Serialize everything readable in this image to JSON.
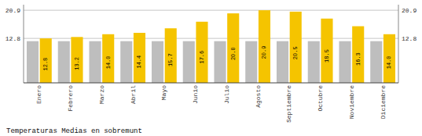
{
  "chart_data": {
    "type": "bar",
    "title": "Temperaturas Medias en sobremunt",
    "categories": [
      "Enero",
      "Febrero",
      "Marzo",
      "Abril",
      "Mayo",
      "Junio",
      "Julio",
      "Agosto",
      "Septiembre",
      "Octubre",
      "Noviembre",
      "Diciembre"
    ],
    "series": [
      {
        "color": "#BEBEBE",
        "values": [
          12.0,
          12.0,
          12.0,
          12.0,
          12.0,
          12.0,
          12.0,
          12.0,
          12.0,
          12.0,
          12.0,
          12.0
        ]
      },
      {
        "color": "#F5C400",
        "values": [
          12.8,
          13.2,
          14.0,
          14.4,
          15.7,
          17.6,
          20.0,
          20.9,
          20.5,
          18.5,
          16.3,
          14.0
        ],
        "value_labels": [
          "12.8",
          "13.2",
          "14.0",
          "14.4",
          "15.7",
          "17.6",
          "20.0",
          "20.9",
          "20.5",
          "18.5",
          "16.3",
          "14.0"
        ],
        "data_labels": true
      }
    ],
    "ylim": [
      0,
      22.5
    ],
    "yticks": [
      12.8,
      20.9
    ],
    "y2lim": [
      0,
      22.5
    ],
    "y2ticks": [
      12.8,
      20.9
    ],
    "grid": true
  }
}
